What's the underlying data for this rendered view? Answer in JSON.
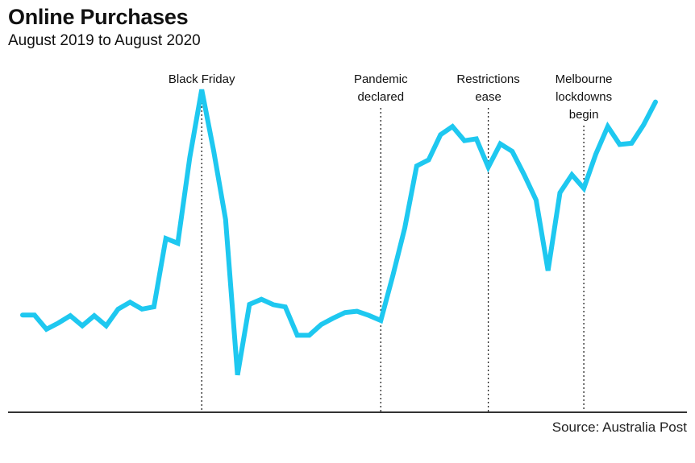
{
  "header": {
    "title": "Online Purchases",
    "subtitle": "August 2019 to August 2020"
  },
  "footer": {
    "source": "Source: Australia Post"
  },
  "chart_data": {
    "type": "line",
    "title": "Online Purchases",
    "subtitle": "August 2019 to August 2020",
    "xlabel": "",
    "ylabel": "",
    "grid": false,
    "legend": "none",
    "line_color": "#1ec8f0",
    "x": [
      1,
      2,
      3,
      4,
      5,
      6,
      7,
      8,
      9,
      10,
      11,
      12,
      13,
      14,
      15,
      16,
      17,
      18,
      19,
      20,
      21,
      22,
      23,
      24,
      25,
      26,
      27,
      28,
      29,
      30,
      31,
      32,
      33,
      34,
      35,
      36,
      37,
      38,
      39,
      40,
      41,
      42,
      43,
      44,
      45,
      46,
      47,
      48,
      49,
      50,
      51,
      52,
      53,
      54
    ],
    "series": [
      {
        "values": [
          30.3,
          30.3,
          25.8,
          27.8,
          30.1,
          26.9,
          30.1,
          26.9,
          32.2,
          34.4,
          32.2,
          32.9,
          54.6,
          53.1,
          80.3,
          101.8,
          82.4,
          60.6,
          11.3,
          33.7,
          35.3,
          33.6,
          32.9,
          23.9,
          23.9,
          27.3,
          29.3,
          31.1,
          31.5,
          30.2,
          28.6,
          42.8,
          57.9,
          77.6,
          79.5,
          87.5,
          90.1,
          85.6,
          86.2,
          77.2,
          84.6,
          82.2,
          74.8,
          66.8,
          44.4,
          69.1,
          74.8,
          70.5,
          81.3,
          90.1,
          84.4,
          84.8,
          90.6,
          97.9
        ]
      }
    ],
    "ylim": [
      0,
      120
    ],
    "annotations": [
      {
        "x": 16,
        "label_lines": [
          "Black Friday"
        ]
      },
      {
        "x": 31,
        "label_lines": [
          "Pandemic",
          "declared"
        ]
      },
      {
        "x": 40,
        "label_lines": [
          "Restrictions",
          "ease"
        ]
      },
      {
        "x": 48,
        "label_lines": [
          "Melbourne",
          "lockdowns",
          "begin"
        ]
      }
    ]
  }
}
